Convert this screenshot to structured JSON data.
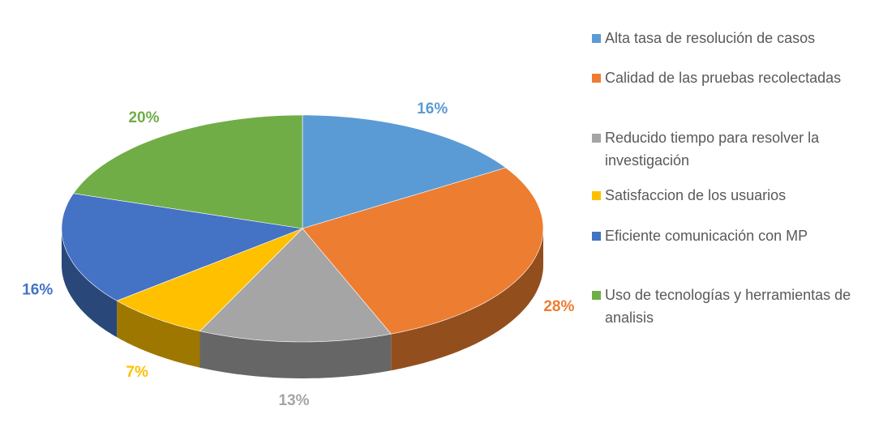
{
  "chart_data": {
    "type": "pie3d",
    "categories": [
      "Alta tasa de resolución de casos",
      "Calidad de las pruebas recolectadas",
      "Reducido tiempo para resolver la investigación",
      "Satisfaccion de los usuarios",
      "Eficiente comunicación con MP",
      "Uso de tecnologías y herramientas de analisis"
    ],
    "values": [
      16,
      28,
      13,
      7,
      16,
      20
    ],
    "value_labels": [
      "16%",
      "28%",
      "13%",
      "7%",
      "16%",
      "20%"
    ],
    "colors": [
      "#5b9bd5",
      "#ed7d31",
      "#a5a5a5",
      "#ffc000",
      "#4472c4",
      "#70ad47"
    ],
    "legend": "right"
  }
}
